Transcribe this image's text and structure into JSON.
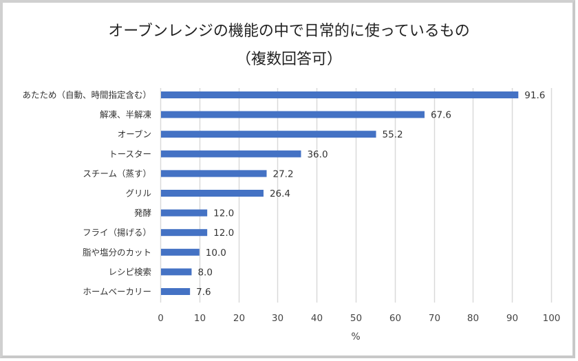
{
  "chart_data": {
    "type": "bar",
    "orientation": "horizontal",
    "title": "オーブンレンジの機能の中で日常的に使っているもの",
    "subtitle": "（複数回答可）",
    "categories": [
      "あたため（自動、時間指定含む）",
      "解凍、半解凍",
      "オーブン",
      "トースター",
      "スチーム（蒸す）",
      "グリル",
      "発酵",
      "フライ（揚げる）",
      "脂や塩分のカット",
      "レシピ検索",
      "ホームベーカリー"
    ],
    "values": [
      91.6,
      67.6,
      55.2,
      36.0,
      27.2,
      26.4,
      12.0,
      12.0,
      10.0,
      8.0,
      7.6
    ],
    "value_labels": [
      "91.6",
      "67.6",
      "55.2",
      "36.0",
      "27.2",
      "26.4",
      "12.0",
      "12.0",
      "10.0",
      "8.0",
      "7.6"
    ],
    "xlabel": "%",
    "ylabel": "",
    "xlim": [
      0,
      100
    ],
    "xticks": [
      "0",
      "10",
      "20",
      "30",
      "40",
      "50",
      "60",
      "70",
      "80",
      "90",
      "100"
    ],
    "grid": true,
    "legend": "none",
    "bar_color": "#4472C4",
    "grid_color": "#d9d9d9"
  }
}
